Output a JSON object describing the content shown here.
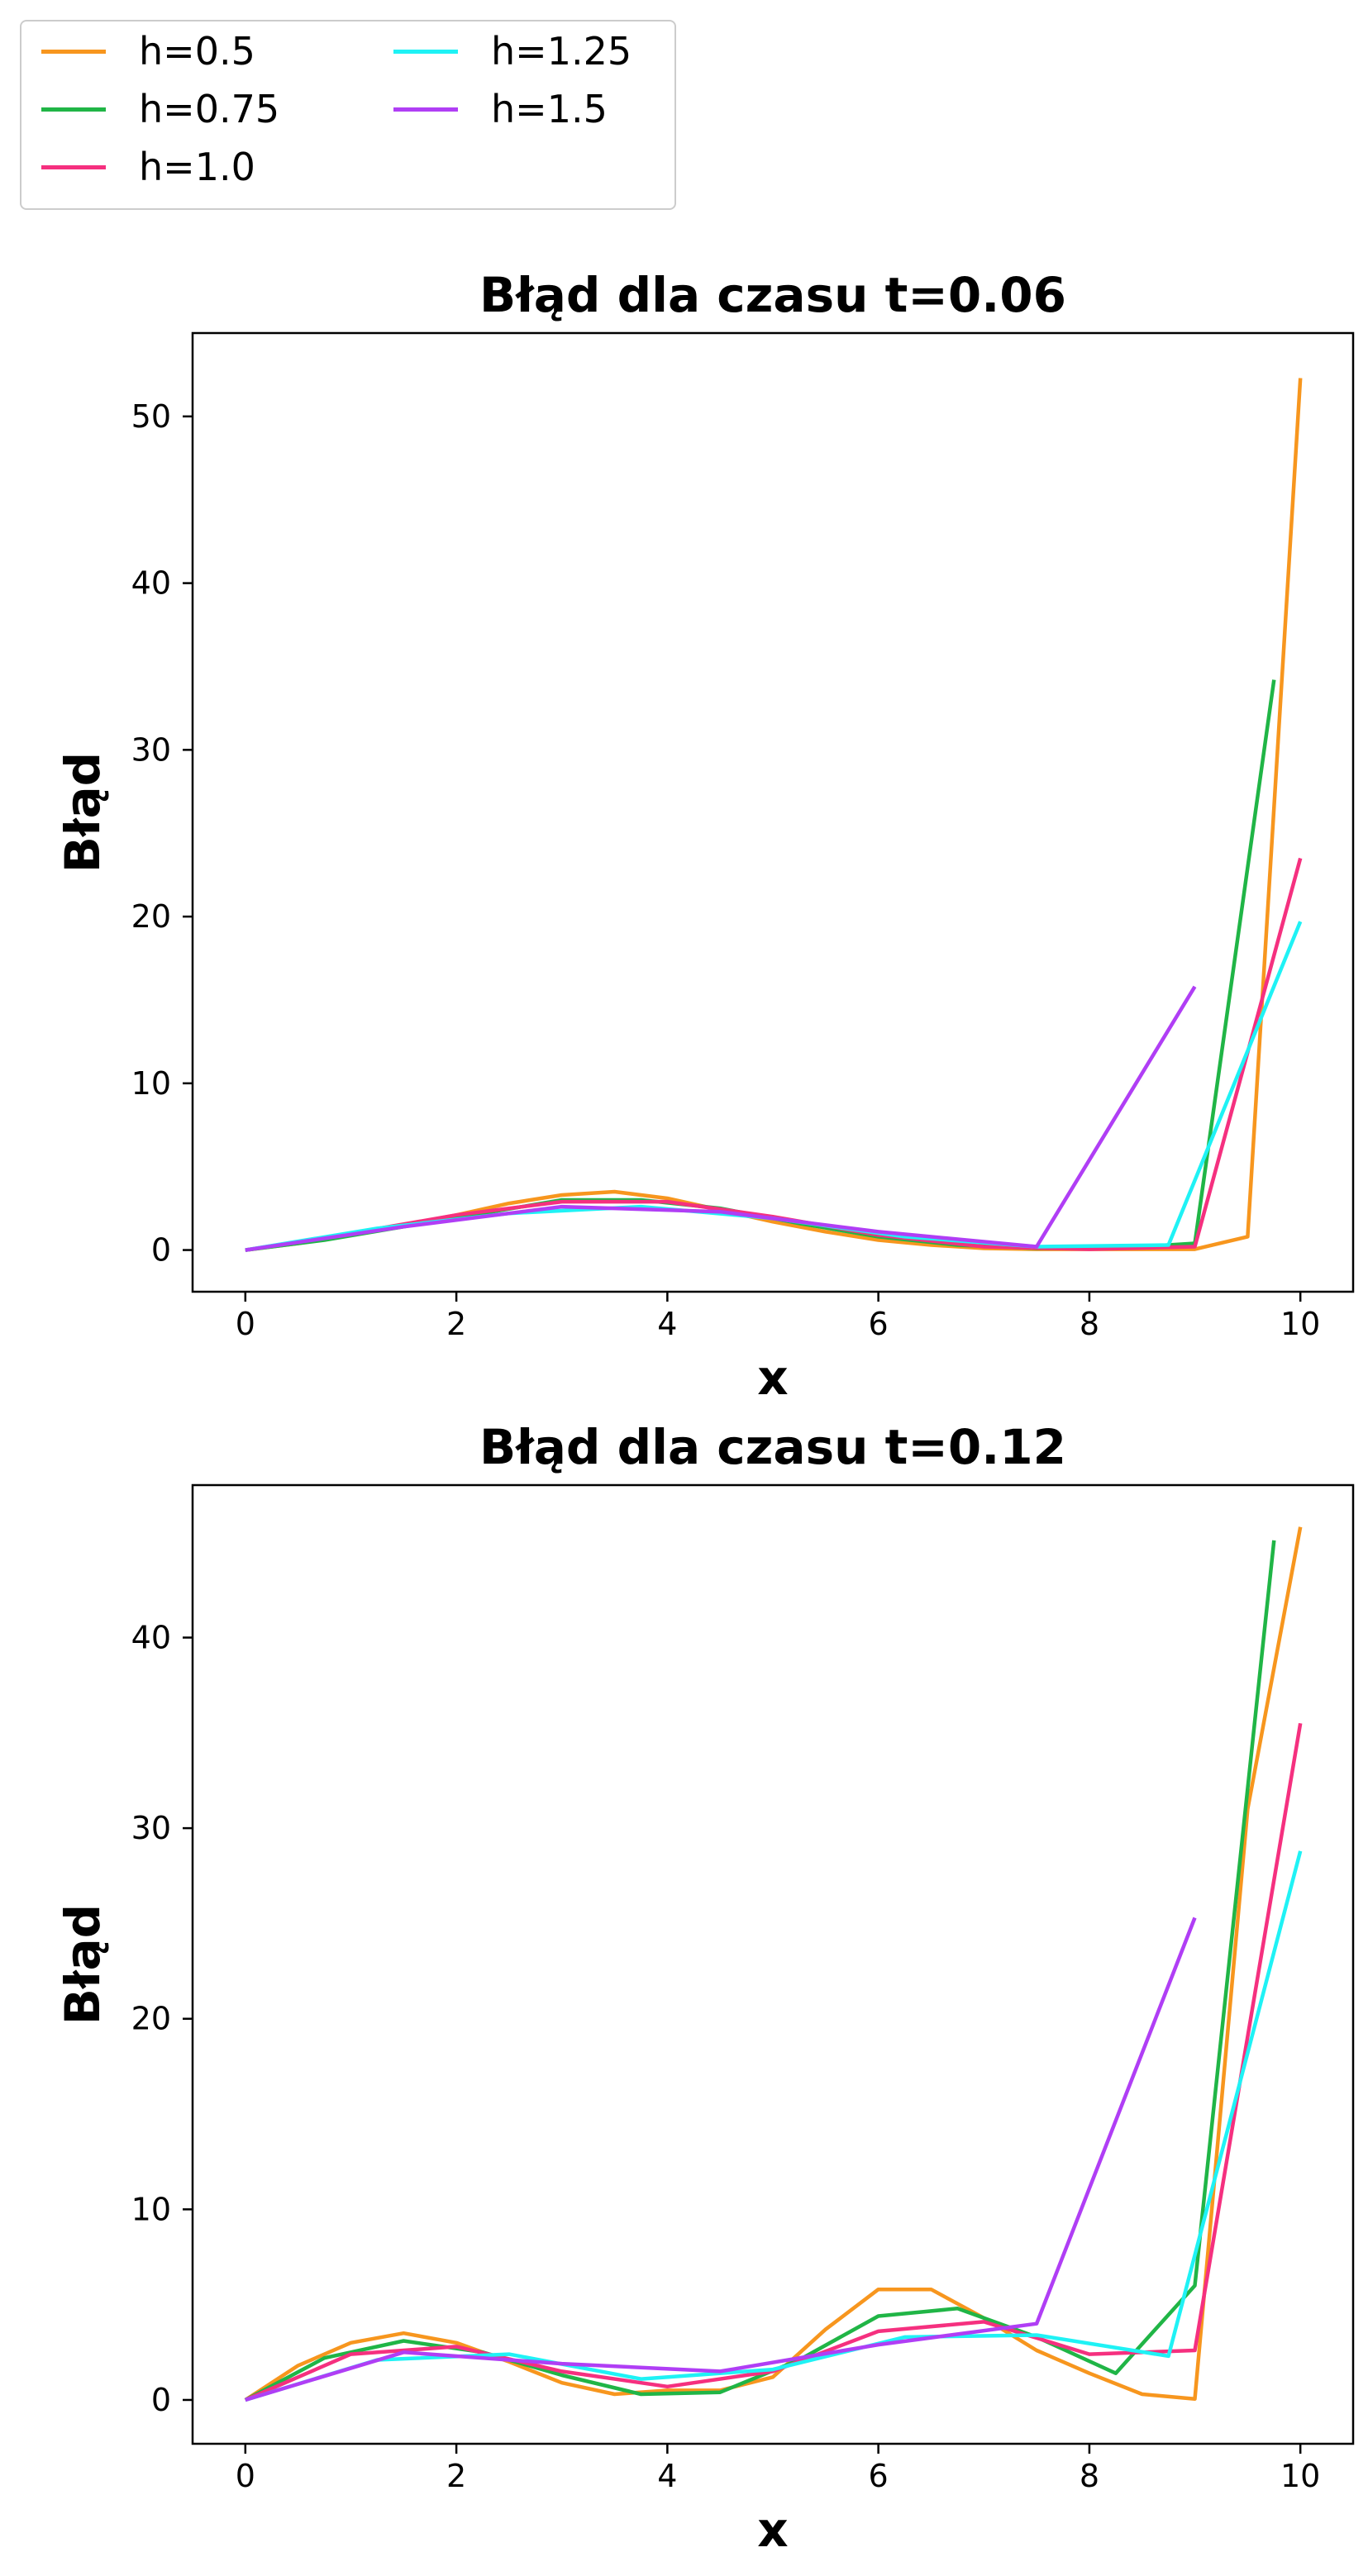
{
  "legend": {
    "location": "upper-left (outside, above plots)",
    "entries": [
      {
        "label": "h=0.5",
        "color": "#f7961e"
      },
      {
        "label": "h=0.75",
        "color": "#20b546"
      },
      {
        "label": "h=1.0",
        "color": "#f5307f"
      },
      {
        "label": "h=1.25",
        "color": "#1ff2f5"
      },
      {
        "label": "h=1.5",
        "color": "#b03ef5"
      }
    ]
  },
  "chart_data": [
    {
      "type": "line",
      "title": "Błąd dla czasu t=0.06",
      "xlabel": "x",
      "ylabel": "Błąd",
      "xlim": [
        -0.5,
        10.5
      ],
      "ylim": [
        -2.5,
        55
      ],
      "xticks": [
        "0",
        "2",
        "4",
        "6",
        "8",
        "10"
      ],
      "yticks": [
        "0",
        "10",
        "20",
        "30",
        "40",
        "50"
      ],
      "grid": false,
      "series": [
        {
          "name": "h=0.5",
          "color": "#f7961e",
          "x": [
            0,
            0.5,
            1,
            1.5,
            2,
            2.5,
            3,
            3.5,
            4,
            4.5,
            5,
            5.5,
            6,
            6.5,
            7,
            7.5,
            8,
            8.5,
            9,
            9.5,
            10
          ],
          "y": [
            0,
            0.4,
            0.9,
            1.5,
            2.1,
            2.8,
            3.3,
            3.5,
            3.1,
            2.4,
            1.7,
            1.1,
            0.6,
            0.3,
            0.1,
            0.05,
            0.05,
            0.05,
            0.05,
            0.8,
            52.3
          ]
        },
        {
          "name": "h=0.75",
          "color": "#20b546",
          "x": [
            0,
            0.75,
            1.5,
            2.25,
            3,
            3.75,
            4.5,
            5.25,
            6,
            6.75,
            7.5,
            8.25,
            9,
            9.75
          ],
          "y": [
            0,
            0.6,
            1.4,
            2.2,
            3.0,
            3.0,
            2.5,
            1.6,
            0.8,
            0.3,
            0.1,
            0.1,
            0.4,
            34.2
          ]
        },
        {
          "name": "h=1.0",
          "color": "#f5307f",
          "x": [
            0,
            1,
            2,
            3,
            4,
            5,
            6,
            7,
            8,
            9,
            10
          ],
          "y": [
            0,
            1.0,
            2.1,
            2.9,
            2.9,
            2.0,
            0.9,
            0.2,
            0.05,
            0.2,
            23.5
          ]
        },
        {
          "name": "h=1.25",
          "color": "#1ff2f5",
          "x": [
            0,
            1.25,
            2.5,
            3.75,
            5,
            6.25,
            7.5,
            8.75,
            10
          ],
          "y": [
            0,
            1.3,
            2.2,
            2.6,
            1.9,
            0.8,
            0.2,
            0.3,
            19.7
          ]
        },
        {
          "name": "h=1.5",
          "color": "#b03ef5",
          "x": [
            0,
            1.5,
            3,
            4.5,
            6,
            7.5,
            9
          ],
          "y": [
            0,
            1.4,
            2.6,
            2.3,
            1.1,
            0.2,
            15.8
          ]
        }
      ]
    },
    {
      "type": "line",
      "title": "Błąd dla czasu t=0.12",
      "xlabel": "x",
      "ylabel": "Błąd",
      "xlim": [
        -0.5,
        10.5
      ],
      "ylim": [
        -2.3,
        48
      ],
      "xticks": [
        "0",
        "2",
        "4",
        "6",
        "8",
        "10"
      ],
      "yticks": [
        "0",
        "10",
        "20",
        "30",
        "40"
      ],
      "grid": false,
      "series": [
        {
          "name": "h=0.5",
          "color": "#f7961e",
          "x": [
            0,
            0.5,
            1,
            1.5,
            2,
            2.5,
            3,
            3.5,
            4,
            4.5,
            5,
            5.5,
            6,
            6.5,
            7,
            7.5,
            8,
            8.5,
            9,
            9.5,
            10
          ],
          "y": [
            0,
            1.8,
            3.0,
            3.5,
            3.0,
            2.0,
            0.9,
            0.3,
            0.5,
            0.5,
            1.2,
            3.7,
            5.8,
            5.8,
            4.3,
            2.6,
            1.4,
            0.3,
            0.05,
            31.0,
            45.8
          ]
        },
        {
          "name": "h=0.75",
          "color": "#20b546",
          "x": [
            0,
            0.75,
            1.5,
            2.25,
            3,
            3.75,
            4.5,
            5.25,
            6,
            6.75,
            7.5,
            8.25,
            9,
            9.75
          ],
          "y": [
            0,
            2.2,
            3.1,
            2.5,
            1.3,
            0.3,
            0.4,
            2.1,
            4.4,
            4.8,
            3.3,
            1.4,
            6.0,
            45.1
          ]
        },
        {
          "name": "h=1.0",
          "color": "#f5307f",
          "x": [
            0,
            1,
            2,
            3,
            4,
            5,
            6,
            7,
            8,
            9,
            10
          ],
          "y": [
            0,
            2.4,
            2.8,
            1.5,
            0.7,
            1.5,
            3.6,
            4.1,
            2.4,
            2.6,
            35.5
          ]
        },
        {
          "name": "h=1.25",
          "color": "#1ff2f5",
          "x": [
            0,
            1.25,
            2.5,
            3.75,
            5,
            6.25,
            7.5,
            8.75,
            10
          ],
          "y": [
            0,
            2.1,
            2.4,
            1.1,
            1.6,
            3.3,
            3.4,
            2.3,
            28.8
          ]
        },
        {
          "name": "h=1.5",
          "color": "#b03ef5",
          "x": [
            0,
            1.5,
            3,
            4.5,
            6,
            7.5,
            9
          ],
          "y": [
            0,
            2.5,
            1.9,
            1.5,
            2.9,
            4.0,
            25.3
          ]
        }
      ]
    }
  ]
}
